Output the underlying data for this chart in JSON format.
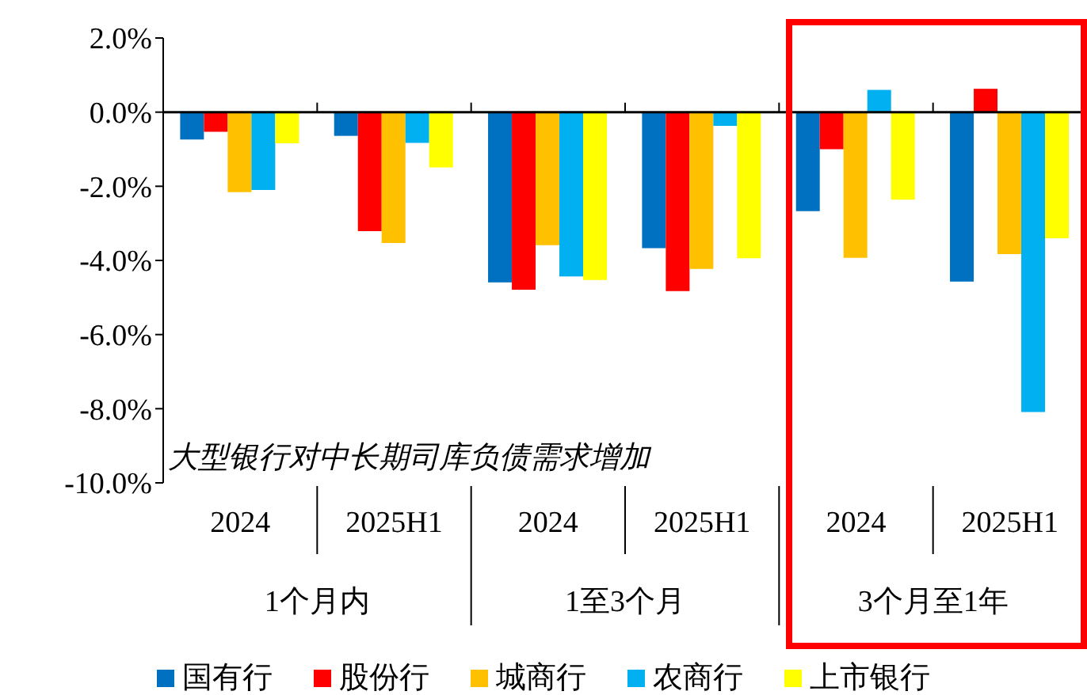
{
  "chart_data": {
    "type": "bar",
    "categories": [
      "2024",
      "2025H1",
      "2024",
      "2025H1",
      "2024",
      "2025H1"
    ],
    "series": [
      {
        "name": "国有行",
        "color": "#0070c0",
        "values": [
          -0.74,
          -0.64,
          -4.59,
          -3.67,
          -2.67,
          -4.57
        ]
      },
      {
        "name": "股份行",
        "color": "#ff0000",
        "values": [
          -0.53,
          -3.21,
          -4.79,
          -4.83,
          -1.0,
          0.63
        ]
      },
      {
        "name": "城商行",
        "color": "#ffc000",
        "values": [
          -2.16,
          -3.53,
          -3.59,
          -4.23,
          -3.93,
          -3.83
        ]
      },
      {
        "name": "农商行",
        "color": "#00b0f0",
        "values": [
          -2.1,
          -0.83,
          -4.43,
          -0.37,
          0.6,
          -8.09
        ]
      },
      {
        "name": "上市银行",
        "color": "#ffff00",
        "values": [
          -0.84,
          -1.49,
          -4.53,
          -3.94,
          -2.36,
          -3.4
        ]
      }
    ],
    "ylim": [
      -10,
      2
    ],
    "yticks": [
      {
        "value": 2,
        "label": "2.0%"
      },
      {
        "value": 0,
        "label": "0.0%"
      },
      {
        "value": -2,
        "label": "-2.0%"
      },
      {
        "value": -4,
        "label": "-4.0%"
      },
      {
        "value": -6,
        "label": "-6.0%"
      },
      {
        "value": -8,
        "label": "-8.0%"
      },
      {
        "value": -10,
        "label": "-10.0%"
      }
    ],
    "annotations": [
      "大型银行对中长期司库负债需求增加",
      "1个月内",
      "1至3个月",
      "3个月至1年"
    ],
    "ref_lines": [
      {
        "axis": "y",
        "value": 0,
        "color": "#000000"
      }
    ],
    "legend": "bottom",
    "grid": false
  }
}
